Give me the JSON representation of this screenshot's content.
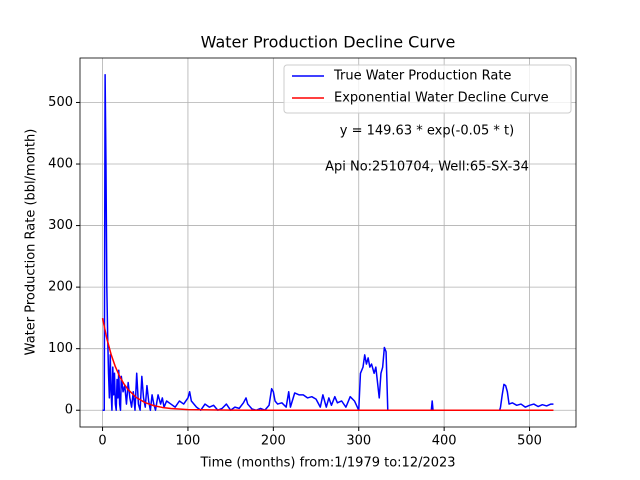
{
  "chart_data": {
    "type": "line",
    "title": "Water Production Decline Curve",
    "x_label": "Time (months) from:1/1979 to:12/2023",
    "y_label": "Water Production Rate (bbl/month)",
    "annotations": [
      "y = 149.63 * exp(-0.05 * t)",
      "Api No:2510704, Well:65-SX-34"
    ],
    "xlim": [
      -26.4,
      554.4
    ],
    "ylim": [
      -27.25,
      572.25
    ],
    "xticks": [
      0,
      100,
      200,
      300,
      400,
      500
    ],
    "yticks": [
      0,
      100,
      200,
      300,
      400,
      500
    ],
    "grid": true,
    "legend": "upper right",
    "series": [
      {
        "name": "True Water Production Rate",
        "color": "#0000ff",
        "x": [
          0,
          2,
          3,
          4,
          5,
          6,
          7,
          8,
          9,
          10,
          11,
          12,
          13,
          14,
          15,
          16,
          17,
          18,
          19,
          20,
          21,
          22,
          24,
          26,
          28,
          30,
          32,
          34,
          36,
          38,
          40,
          42,
          44,
          46,
          48,
          50,
          52,
          54,
          56,
          58,
          60,
          62,
          65,
          68,
          70,
          72,
          75,
          80,
          85,
          90,
          95,
          100,
          102,
          104,
          110,
          115,
          120,
          125,
          130,
          135,
          140,
          145,
          150,
          155,
          160,
          165,
          168,
          170,
          175,
          180,
          185,
          190,
          195,
          198,
          200,
          202,
          205,
          210,
          215,
          218,
          220,
          225,
          230,
          235,
          240,
          245,
          250,
          255,
          258,
          262,
          265,
          268,
          272,
          275,
          280,
          285,
          290,
          295,
          300,
          302,
          305,
          307,
          309,
          311,
          313,
          315,
          318,
          320,
          322,
          324,
          326,
          328,
          330,
          332,
          334,
          340,
          350,
          360,
          385,
          386,
          387,
          400,
          450,
          465,
          466,
          468,
          470,
          472,
          474,
          476,
          480,
          485,
          490,
          495,
          500,
          505,
          510,
          515,
          520,
          525,
          528
        ],
        "values": [
          0,
          0,
          545,
          400,
          200,
          120,
          60,
          20,
          90,
          30,
          0,
          70,
          25,
          60,
          10,
          0,
          50,
          20,
          65,
          10,
          0,
          55,
          30,
          40,
          10,
          45,
          20,
          5,
          30,
          0,
          60,
          10,
          0,
          55,
          20,
          5,
          40,
          15,
          0,
          25,
          10,
          0,
          25,
          10,
          20,
          5,
          15,
          10,
          5,
          15,
          10,
          20,
          30,
          15,
          5,
          0,
          10,
          5,
          8,
          0,
          3,
          10,
          0,
          5,
          3,
          12,
          20,
          10,
          2,
          0,
          3,
          0,
          8,
          35,
          30,
          15,
          10,
          12,
          5,
          30,
          5,
          28,
          25,
          25,
          20,
          22,
          18,
          5,
          25,
          5,
          20,
          8,
          22,
          12,
          15,
          5,
          22,
          15,
          0,
          60,
          70,
          90,
          75,
          85,
          70,
          75,
          60,
          70,
          45,
          20,
          60,
          70,
          102,
          95,
          0,
          0,
          0,
          0,
          0,
          15,
          0,
          0,
          0,
          0,
          5,
          25,
          42,
          40,
          30,
          10,
          12,
          8,
          10,
          5,
          8,
          10,
          6,
          9,
          7,
          10,
          10
        ]
      },
      {
        "name": "Exponential Water Decline Curve",
        "color": "#ff0000",
        "x": [
          0,
          5,
          10,
          15,
          20,
          25,
          30,
          40,
          50,
          60,
          70,
          80,
          100,
          150,
          200,
          300,
          400,
          528
        ],
        "values": [
          149.63,
          116.53,
          90.75,
          70.68,
          55.05,
          42.87,
          33.39,
          20.25,
          12.28,
          7.45,
          4.52,
          2.74,
          1.01,
          0.08,
          0.01,
          0,
          0,
          0
        ]
      }
    ]
  }
}
